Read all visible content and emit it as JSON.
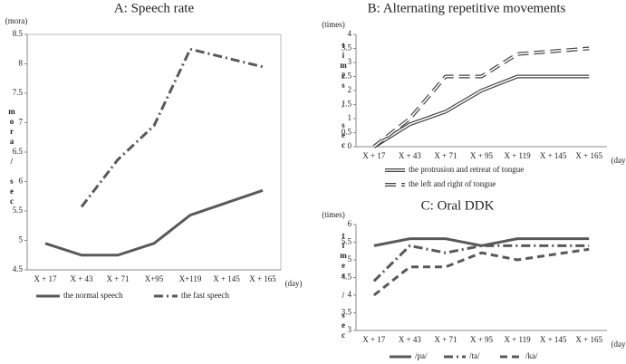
{
  "chart_data": [
    {
      "type": "line",
      "title": "A: Speech rate",
      "unit_label": "(mora)",
      "y_label": "mora / sec",
      "x_label": "(day)",
      "categories": [
        "X + 17",
        "X + 43",
        "X + 71",
        "X+95",
        "X+119",
        "X + 145",
        "X + 165"
      ],
      "ylim": [
        4.5,
        8.5
      ],
      "yticks": [
        4.5,
        5,
        5.5,
        6,
        6.5,
        7,
        7.5,
        8,
        8.5
      ],
      "frame": true,
      "series": [
        {
          "name": "the normal speech",
          "color": "#595959",
          "dash": "solid",
          "values": [
            4.95,
            4.75,
            4.75,
            4.95,
            5.43,
            5.64,
            5.85
          ]
        },
        {
          "name": "the fast speech",
          "color": "#595959",
          "dash": "dashdot",
          "values": [
            null,
            5.57,
            6.37,
            6.95,
            8.25,
            8.1,
            7.95
          ]
        }
      ]
    },
    {
      "type": "line",
      "title": "B: Alternating repetitive movements",
      "unit_label": "(times)",
      "y_label": "times / sec",
      "x_label": "(day)",
      "categories": [
        "X + 17",
        "X + 43",
        "X + 71",
        "X + 95",
        "X + 119",
        "X + 145",
        "X + 165"
      ],
      "ylim": [
        0,
        4
      ],
      "yticks": [
        0,
        0.5,
        1,
        1.5,
        2,
        2.5,
        3,
        3.5,
        4
      ],
      "frame": false,
      "series": [
        {
          "name": "the protrusion and retreat of tongue",
          "color": "#444444",
          "dash": "double",
          "values": [
            0,
            0.8,
            1.25,
            2.0,
            2.5,
            2.5,
            2.5
          ]
        },
        {
          "name": "the left and right of tongue",
          "color": "#444444",
          "dash": "doubledash",
          "values": [
            0,
            1.0,
            2.5,
            2.5,
            3.3,
            3.4,
            3.5
          ]
        }
      ]
    },
    {
      "type": "line",
      "title": "C: Oral DDK",
      "unit_label": "(times)",
      "y_label": "times / sec",
      "x_label": "(day)",
      "categories": [
        "X + 17",
        "X + 43",
        "X + 71",
        "X + 95",
        "X + 119",
        "X + 145",
        "X + 165"
      ],
      "ylim": [
        3,
        6
      ],
      "yticks": [
        3,
        3.5,
        4,
        4.5,
        5,
        5.5,
        6
      ],
      "frame": false,
      "series": [
        {
          "name": "/pa/",
          "color": "#595959",
          "dash": "solid",
          "values": [
            5.4,
            5.6,
            5.6,
            5.4,
            5.6,
            5.6,
            5.6
          ]
        },
        {
          "name": "/ta/",
          "color": "#595959",
          "dash": "dashdot",
          "values": [
            4.4,
            5.4,
            5.2,
            5.4,
            5.4,
            5.4,
            5.4
          ]
        },
        {
          "name": "/ka/",
          "color": "#595959",
          "dash": "dash",
          "values": [
            4.0,
            4.8,
            4.8,
            5.2,
            5.0,
            5.15,
            5.3
          ]
        }
      ]
    }
  ]
}
